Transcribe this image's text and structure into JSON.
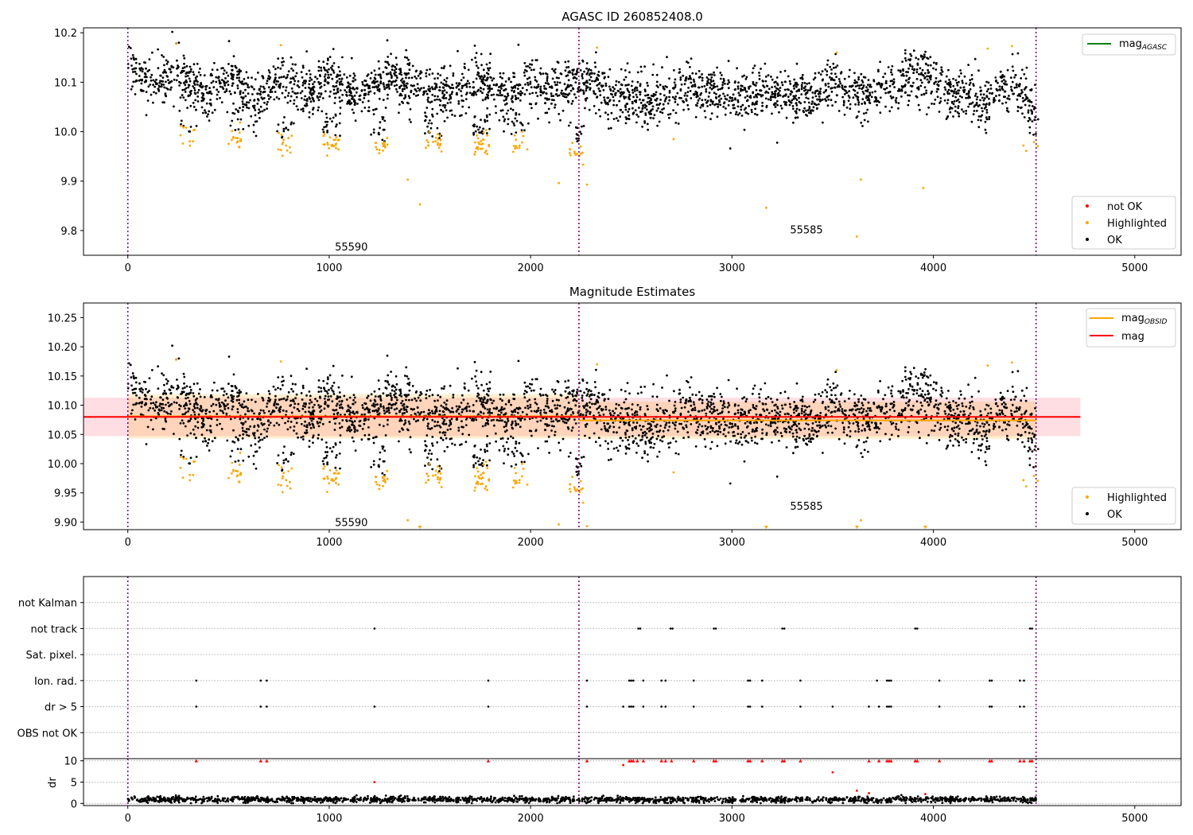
{
  "chart_data": [
    {
      "type": "scatter",
      "title": "AGASC ID 260852408.0",
      "xlim": [
        -220,
        5230
      ],
      "ylim": [
        9.75,
        10.21
      ],
      "x_ticks": [
        0,
        1000,
        2000,
        3000,
        4000,
        5000
      ],
      "x_tick_labels": [
        "0",
        "1000",
        "2000",
        "3000",
        "4000",
        "5000"
      ],
      "y_ticks": [
        9.8,
        9.9,
        10.0,
        10.1,
        10.2
      ],
      "y_tick_labels": [
        "9.8",
        "9.9",
        "10.0",
        "10.1",
        "10.2"
      ],
      "obsid_boundaries": [
        0,
        2240,
        4510
      ],
      "obsid_labels": [
        {
          "text": "55590",
          "x": 1110,
          "y": 9.768
        },
        {
          "text": "55585",
          "x": 3370,
          "y": 9.802
        }
      ],
      "lines": [
        {
          "name": "mag",
          "sub": "AGASC",
          "color": "#008000"
        }
      ],
      "legend_lines_placement": "upper right",
      "legend_points_placement": "lower right",
      "series": [
        {
          "name": "not OK",
          "color": "#ff0000"
        },
        {
          "name": "Highlighted",
          "color": "#ffa500"
        },
        {
          "name": "OK",
          "color": "#000000"
        }
      ],
      "highlighted_isolated_points": [
        [
          240,
          10.178
        ],
        [
          760,
          10.175
        ],
        [
          1390,
          9.903
        ],
        [
          1450,
          9.853
        ],
        [
          2140,
          9.896
        ],
        [
          2280,
          9.893
        ],
        [
          2330,
          10.17
        ],
        [
          2710,
          9.985
        ],
        [
          3170,
          9.846
        ],
        [
          3520,
          10.16
        ],
        [
          3620,
          9.788
        ],
        [
          3640,
          9.903
        ],
        [
          3950,
          9.886
        ],
        [
          4270,
          10.168
        ],
        [
          4390,
          10.173
        ]
      ],
      "highlighted_dip_clusters": [
        {
          "x_center": 300,
          "y_center": 9.985,
          "count": 10
        },
        {
          "x_center": 530,
          "y_center": 9.985,
          "count": 16
        },
        {
          "x_center": 780,
          "y_center": 9.97,
          "count": 14
        },
        {
          "x_center": 1010,
          "y_center": 9.975,
          "count": 22
        },
        {
          "x_center": 1250,
          "y_center": 9.965,
          "count": 16
        },
        {
          "x_center": 1520,
          "y_center": 9.975,
          "count": 20
        },
        {
          "x_center": 1760,
          "y_center": 9.975,
          "count": 26
        },
        {
          "x_center": 1950,
          "y_center": 9.98,
          "count": 14
        },
        {
          "x_center": 2230,
          "y_center": 9.955,
          "count": 14
        },
        {
          "x_center": 4480,
          "y_center": 9.975,
          "count": 4
        }
      ],
      "ok_band_trend": [
        [
          0,
          10.13
        ],
        [
          100,
          10.1
        ],
        [
          250,
          10.12
        ],
        [
          400,
          10.06
        ],
        [
          500,
          10.12
        ],
        [
          620,
          10.06
        ],
        [
          750,
          10.11
        ],
        [
          900,
          10.08
        ],
        [
          1000,
          10.11
        ],
        [
          1150,
          10.07
        ],
        [
          1300,
          10.11
        ],
        [
          1450,
          10.09
        ],
        [
          1600,
          10.08
        ],
        [
          1750,
          10.11
        ],
        [
          1900,
          10.07
        ],
        [
          2000,
          10.1
        ],
        [
          2100,
          10.08
        ],
        [
          2240,
          10.11
        ],
        [
          2400,
          10.07
        ],
        [
          2600,
          10.06
        ],
        [
          2800,
          10.09
        ],
        [
          3000,
          10.07
        ],
        [
          3200,
          10.08
        ],
        [
          3400,
          10.07
        ],
        [
          3500,
          10.1
        ],
        [
          3650,
          10.07
        ],
        [
          3800,
          10.09
        ],
        [
          3950,
          10.12
        ],
        [
          4100,
          10.08
        ],
        [
          4250,
          10.06
        ],
        [
          4400,
          10.1
        ],
        [
          4510,
          10.04
        ]
      ],
      "ok_scatter_sigma": 0.025,
      "ok_point_count": 3000
    },
    {
      "type": "scatter",
      "title": "Magnitude Estimates",
      "xlim": [
        -220,
        5230
      ],
      "ylim": [
        9.887,
        10.275
      ],
      "x_ticks": [
        0,
        1000,
        2000,
        3000,
        4000,
        5000
      ],
      "x_tick_labels": [
        "0",
        "1000",
        "2000",
        "3000",
        "4000",
        "5000"
      ],
      "y_ticks": [
        9.9,
        9.95,
        10.0,
        10.05,
        10.1,
        10.15,
        10.2,
        10.25
      ],
      "y_tick_labels": [
        "9.90",
        "9.95",
        "10.00",
        "10.05",
        "10.10",
        "10.15",
        "10.20",
        "10.25"
      ],
      "obsid_boundaries": [
        0,
        2240,
        4510
      ],
      "obsid_labels": [
        {
          "text": "55590",
          "x": 1110,
          "y": 9.9
        },
        {
          "text": "55585",
          "x": 3370,
          "y": 9.928
        }
      ],
      "lines": [
        {
          "name": "mag",
          "sub": "OBSID",
          "color": "#ffa500"
        },
        {
          "name": "mag",
          "sub": "",
          "color": "#ff0000"
        }
      ],
      "mag_line": {
        "value": 10.08,
        "x_range": [
          -220,
          4730
        ],
        "band": [
          10.047,
          10.113
        ],
        "band_color": "#ffb6c1"
      },
      "obsid_mag_segments": [
        {
          "x_range": [
            0,
            2240
          ],
          "value": 10.081,
          "band": [
            10.043,
            10.119
          ]
        },
        {
          "x_range": [
            2240,
            4510
          ],
          "value": 10.074,
          "band": [
            10.042,
            10.106
          ]
        }
      ],
      "legend_lines_placement": "upper right",
      "legend_points_placement": "lower right",
      "series": [
        {
          "name": "Highlighted",
          "color": "#ffa500"
        },
        {
          "name": "OK",
          "color": "#000000"
        }
      ],
      "clipped_markers": [
        1450,
        3170,
        3620,
        3960
      ]
    },
    {
      "type": "scatter",
      "title": "",
      "xlim": [
        -220,
        5230
      ],
      "x_ticks": [
        0,
        1000,
        2000,
        3000,
        4000,
        5000
      ],
      "x_tick_labels": [
        "0",
        "1000",
        "2000",
        "3000",
        "4000",
        "5000"
      ],
      "obsid_boundaries": [
        0,
        2240,
        4510
      ],
      "flag_rows": [
        "not Kalman",
        "not track",
        "Sat. pixel.",
        "Ion. rad.",
        "dr > 5",
        "OBS not OK"
      ],
      "flags": {
        "not track": [
          1225,
          2535,
          2545,
          2695,
          2705,
          2910,
          2920,
          3250,
          3260,
          3910,
          3920,
          4480,
          4490
        ],
        "Ion. rad.": [
          340,
          660,
          690,
          1790,
          2280,
          2490,
          2500,
          2510,
          2560,
          2650,
          2670,
          2810,
          3080,
          3090,
          3150,
          3340,
          3720,
          3770,
          3780,
          3790,
          4030,
          4280,
          4290,
          4430,
          4450
        ],
        "dr > 5": [
          340,
          660,
          690,
          1225,
          1790,
          2280,
          2460,
          2490,
          2500,
          2510,
          2560,
          2650,
          2670,
          2810,
          3080,
          3090,
          3150,
          3340,
          3500,
          3680,
          3730,
          3770,
          3780,
          3790,
          4030,
          4280,
          4290,
          4430,
          4450
        ]
      }
    },
    {
      "type": "scatter",
      "title": "",
      "xlabel": "",
      "ylabel": "dr",
      "xlim": [
        -220,
        5230
      ],
      "ylim": [
        -0.5,
        10.5
      ],
      "x_ticks": [
        0,
        1000,
        2000,
        3000,
        4000,
        5000
      ],
      "x_tick_labels": [
        "0",
        "1000",
        "2000",
        "3000",
        "4000",
        "5000"
      ],
      "y_ticks": [
        0,
        5,
        10
      ],
      "y_tick_labels": [
        "0",
        "5",
        "10"
      ],
      "obsid_boundaries": [
        0,
        2240,
        4510
      ],
      "clipped_points_at_10": [
        340,
        660,
        690,
        1790,
        2280,
        2490,
        2500,
        2510,
        2530,
        2560,
        2650,
        2670,
        2700,
        2810,
        2910,
        2920,
        3080,
        3090,
        3150,
        3250,
        3260,
        3340,
        3680,
        3730,
        3770,
        3780,
        3790,
        3910,
        3920,
        4030,
        4280,
        4290,
        4430,
        4450,
        4480,
        4490
      ],
      "outlier_points": [
        [
          1225,
          5.0
        ],
        [
          2460,
          9.0
        ],
        [
          3500,
          7.3
        ],
        [
          3620,
          3.0
        ],
        [
          3680,
          2.4
        ],
        [
          3960,
          2.2
        ]
      ],
      "dr_baseline": 0.9,
      "dr_spread": 0.35
    }
  ]
}
